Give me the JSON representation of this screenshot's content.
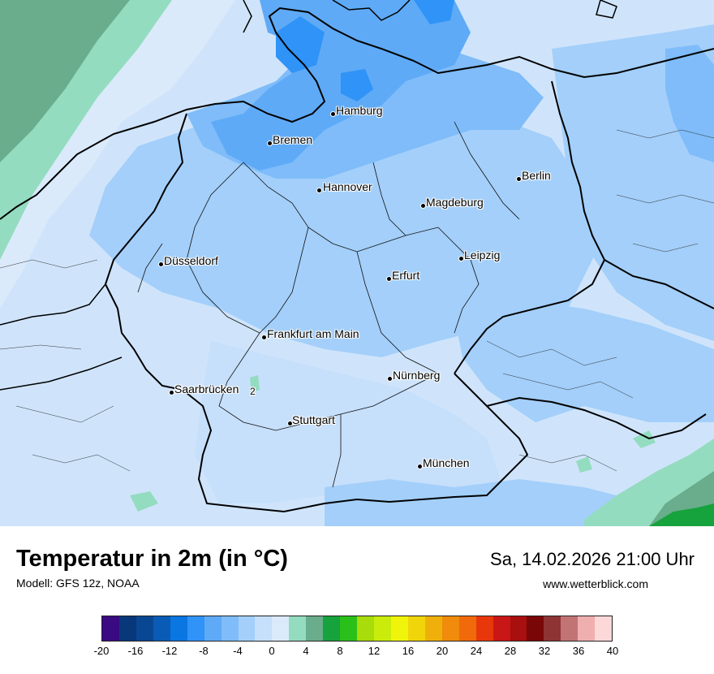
{
  "map": {
    "cities": [
      {
        "name": "Hamburg",
        "id": "hamburg"
      },
      {
        "name": "Bremen",
        "id": "bremen"
      },
      {
        "name": "Berlin",
        "id": "berlin"
      },
      {
        "name": "Hannover",
        "id": "hannover"
      },
      {
        "name": "Magdeburg",
        "id": "magdeburg"
      },
      {
        "name": "Düsseldorf",
        "id": "duesseldorf"
      },
      {
        "name": "Leipzig",
        "id": "leipzig"
      },
      {
        "name": "Erfurt",
        "id": "erfurt"
      },
      {
        "name": "Frankfurt am Main",
        "id": "frankfurt"
      },
      {
        "name": "Nürnberg",
        "id": "nuernberg"
      },
      {
        "name": "Saarbrücken",
        "id": "saarbruecken"
      },
      {
        "name": "Stuttgart",
        "id": "stuttgart"
      },
      {
        "name": "München",
        "id": "muenchen"
      }
    ],
    "contour_label": "2"
  },
  "info": {
    "title": "Temperatur in 2m (in °C)",
    "model": "Modell: GFS 12z, NOAA",
    "datetime": "Sa, 14.02.2026 21:00 Uhr",
    "website": "www.wetterblick.com"
  },
  "legend": {
    "unit": "°C",
    "ticks": [
      "-20",
      "-16",
      "-12",
      "-8",
      "-4",
      "0",
      "4",
      "8",
      "12",
      "16",
      "20",
      "24",
      "28",
      "32",
      "36",
      "40"
    ],
    "colors": [
      "#3a0a82",
      "#08377a",
      "#0a4793",
      "#0a5bb5",
      "#0a76e2",
      "#2f93f7",
      "#5eaaf7",
      "#7fbcf9",
      "#a3cffa",
      "#c6dffb",
      "#dbeafb",
      "#94dcc0",
      "#6aad8c",
      "#16a23c",
      "#2bc019",
      "#a9dc0b",
      "#c9ec0b",
      "#f0f40b",
      "#f0d50b",
      "#f0b00b",
      "#f08b0b",
      "#f06a0b",
      "#e8380b",
      "#c91616",
      "#a80f0f",
      "#7a0707",
      "#8e3434",
      "#c27474",
      "#f0afaf",
      "#fcd8d8"
    ]
  }
}
